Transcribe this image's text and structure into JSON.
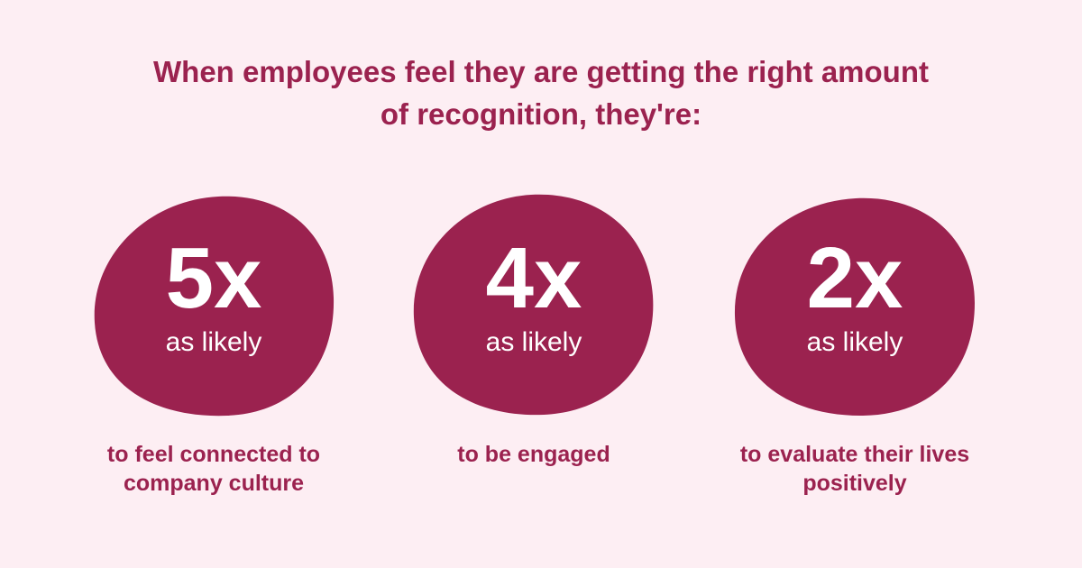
{
  "title": "When employees feel they are getting the right amount of recognition, they're:",
  "stats": [
    {
      "value": "5x",
      "label": "as likely",
      "description": "to feel connected to company culture"
    },
    {
      "value": "4x",
      "label": "as likely",
      "description": "to be engaged"
    },
    {
      "value": "2x",
      "label": "as likely",
      "description": "to evaluate their lives positively"
    }
  ]
}
